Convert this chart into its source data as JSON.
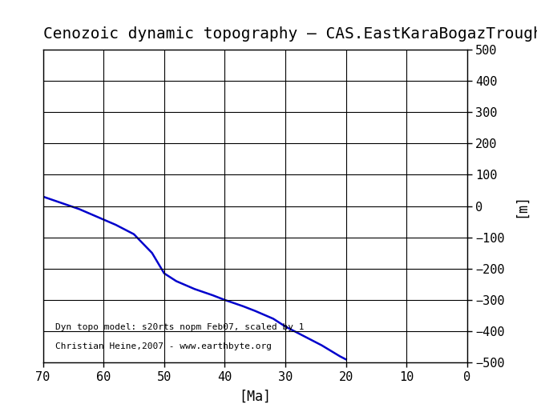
{
  "title": "Cenozoic dynamic topography – CAS.EastKaraBogazTrough",
  "xlabel": "[Ma]",
  "ylabel": "[m]",
  "xlim": [
    70,
    0
  ],
  "ylim": [
    -500,
    500
  ],
  "xticks": [
    70,
    60,
    50,
    40,
    30,
    20,
    10,
    0
  ],
  "yticks": [
    -500,
    -400,
    -300,
    -200,
    -100,
    0,
    100,
    200,
    300,
    400,
    500
  ],
  "line_color": "#0000cc",
  "line_width": 1.8,
  "annotation1": "Dyn topo model: s20rts_nopm_Feb07, scaled by 1",
  "annotation2": "Christian Heine,2007 - www.earthbyte.org",
  "x_data": [
    70,
    67,
    64,
    61,
    58,
    55,
    52,
    50,
    48,
    45,
    42,
    40,
    37,
    35,
    32,
    30,
    27,
    24,
    21,
    20
  ],
  "y_data": [
    30,
    10,
    -10,
    -35,
    -60,
    -90,
    -150,
    -215,
    -240,
    -265,
    -285,
    -300,
    -320,
    -335,
    -360,
    -385,
    -415,
    -445,
    -480,
    -490
  ],
  "title_fontsize": 14,
  "tick_fontsize": 11,
  "annotation_fontsize": 8,
  "ylabel_fontsize": 12,
  "xlabel_fontsize": 12,
  "background_color": "#ffffff",
  "grid_color": "#000000",
  "figure_width": 6.7,
  "figure_height": 5.15,
  "dpi": 100
}
